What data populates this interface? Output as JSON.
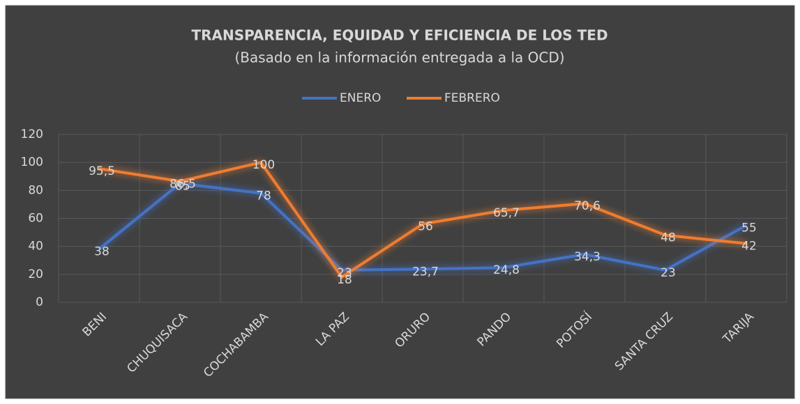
{
  "chart_data": {
    "type": "line",
    "title": "TRANSPARENCIA, EQUIDAD Y EFICIENCIA DE LOS TED",
    "subtitle": "(Basado en la información entregada a la OCD)",
    "categories": [
      "BENI",
      "CHUQUISACA",
      "COCHABAMBA",
      "LA PAZ",
      "ORURO",
      "PANDO",
      "POTOSÍ",
      "SANTA CRUZ",
      "TARIJA"
    ],
    "series": [
      {
        "name": "ENERO",
        "color": "#4472c4",
        "values": [
          38,
          85,
          78,
          23,
          23.7,
          24.8,
          34.3,
          23,
          55
        ],
        "value_labels": [
          "38",
          "85",
          "78",
          "23",
          "23,7",
          "24,8",
          "34,3",
          "23",
          "55"
        ]
      },
      {
        "name": "FEBRERO",
        "color": "#ed7d31",
        "values": [
          95.5,
          86.5,
          100,
          18,
          56,
          65.7,
          70.6,
          48,
          42
        ],
        "value_labels": [
          "95,5",
          "86,5",
          "100",
          "18",
          "56",
          "65,7",
          "70,6",
          "48",
          "42"
        ]
      }
    ],
    "ylim": [
      0,
      120
    ],
    "yticks": [
      0,
      20,
      40,
      60,
      80,
      100,
      120
    ],
    "grid": true,
    "legend": "top"
  }
}
